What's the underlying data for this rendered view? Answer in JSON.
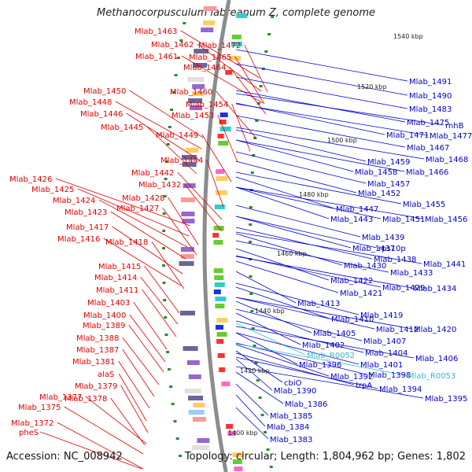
{
  "title": "Methanocorpusculum labreanum Z, complete genome",
  "footer": {
    "accession": "Accession: NC_008942",
    "topology": "Topology: circular; Length: 1,804,962 bp; Genes: 1,802"
  },
  "colors": {
    "left_label": "#e00000",
    "right_label": "#0000c8",
    "rna_label": "#33bbcc",
    "backbone": "#8c8c8c",
    "tick_dot": "#2a8a2a"
  },
  "kbp_ticks": [
    "1540 kbp",
    "1520 kbp",
    "1500 kbp",
    "1480 kbp",
    "1460 kbp",
    "1440 kbp",
    "1420 kbp",
    "1400 kbp"
  ],
  "left_labels": [
    "Mlab_1463",
    "Mlab_1462",
    "Mlab_1461",
    "Mlab_1472",
    "Mlab_1465",
    "Mlab_1464",
    "Mlab_1450",
    "Mlab_1460",
    "Mlab_1448",
    "Mlab_1454",
    "Mlab_1446",
    "Mlab_1453",
    "Mlab_1445",
    "Mlab_1449",
    "Mlab_1444",
    "Mlab_1442",
    "Mlab_1426",
    "Mlab_1432",
    "Mlab_1425",
    "Mlab_1428",
    "Mlab_1424",
    "Mlab_1427",
    "Mlab_1423",
    "Mlab_1417",
    "Mlab_1416",
    "Mlab_1418",
    "Mlab_1415",
    "Mlab_1414",
    "Mlab_1411",
    "Mlab_1403",
    "Mlab_1400",
    "Mlab_1389",
    "Mlab_1388",
    "Mlab_1387",
    "Mlab_1381",
    "alaS",
    "Mlab_1379",
    "Mlab_1377",
    "Mlab_1378",
    "Mlab_1375",
    "Mlab_1372",
    "pheS"
  ],
  "right_labels": [
    "Mlab_1491",
    "Mlab_1490",
    "Mlab_1483",
    "Mlab_1475",
    "rnhB",
    "Mlab_1471",
    "Mlab_1477",
    "Mlab_1467",
    "Mlab_1468",
    "Mlab_1459",
    "Mlab_1458",
    "Mlab_1466",
    "Mlab_1457",
    "Mlab_1452",
    "Mlab_1455",
    "Mlab_1447",
    "Mlab_1443",
    "Mlab_1451",
    "Mlab_1456",
    "Mlab_1439",
    "Mlab_1437",
    "rps10p",
    "Mlab_1438",
    "Mlab_1441",
    "Mlab_1430",
    "Mlab_1433",
    "Mlab_1422",
    "Mlab_1429",
    "Mlab_1434",
    "Mlab_1421",
    "Mlab_1413",
    "Mlab_1419",
    "Mlab_1410",
    "Mlab_1412",
    "Mlab_1420",
    "Mlab_1405",
    "Mlab_1407",
    "Mlab_1402",
    "Mlab_1404",
    "Mlab_1406",
    "Mlab_R0052",
    "Mlab_1401",
    "Mlab_1396",
    "Mlab_1398",
    "Mlab_R0053",
    "Mlab_1392",
    "cbiO",
    "trpA",
    "Mlab_1394",
    "Mlab_1390",
    "Mlab_1395",
    "Mlab_1386",
    "Mlab_1385",
    "Mlab_1384",
    "Mlab_1383"
  ],
  "rna_label_names": [
    "Mlab_R0052",
    "Mlab_R0053"
  ]
}
